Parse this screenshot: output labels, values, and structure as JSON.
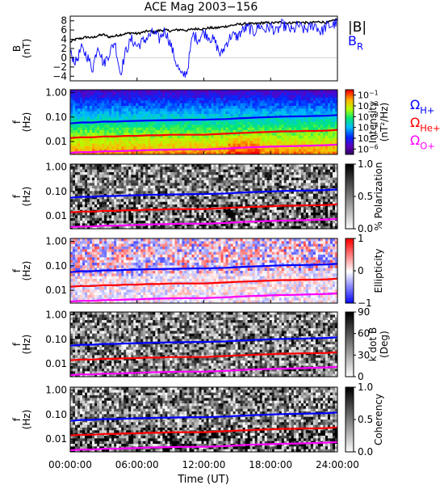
{
  "chart_data": {
    "type": "line",
    "title": "ACE Mag 2003−156",
    "xlabel": "Time (UT)",
    "xlim": [
      0,
      24
    ],
    "x_tick_values": [
      0,
      6,
      12,
      18,
      24
    ],
    "x_tick_labels": [
      "00:00:00",
      "06:00:00",
      "12:00:00",
      "18:00:00",
      "24:00:00"
    ],
    "panels": [
      {
        "id": "field",
        "type": "line",
        "ylabel": [
          "B",
          "(nT)"
        ],
        "ylim": [
          -5,
          9
        ],
        "y_ticks": [
          -4,
          -2,
          0,
          2,
          4,
          6,
          8
        ],
        "legend": [
          {
            "label": "|B|",
            "color": "#000000"
          },
          {
            "label": "B",
            "sub": "R",
            "color": "#0000ff"
          }
        ],
        "series": [
          {
            "name": "|B|",
            "color": "#000000",
            "x": [
              0,
              0.5,
              1,
              1.5,
              2,
              2.5,
              3,
              3.5,
              4,
              4.5,
              5,
              5.5,
              6,
              6.5,
              7,
              7.5,
              8,
              8.5,
              9,
              9.5,
              10,
              10.5,
              11,
              11.5,
              12,
              12.5,
              13,
              13.5,
              14,
              14.5,
              15,
              15.5,
              16,
              16.5,
              17,
              17.5,
              18,
              18.5,
              19,
              19.5,
              20,
              20.5,
              21,
              21.5,
              22,
              22.5,
              23,
              23.5,
              24
            ],
            "values": [
              3.4,
              4.0,
              4.2,
              4.5,
              4.3,
              4.8,
              5.0,
              4.5,
              4.7,
              5.0,
              5.2,
              5.4,
              5.2,
              5.5,
              5.8,
              5.5,
              5.9,
              6.0,
              5.8,
              6.0,
              6.1,
              5.9,
              6.2,
              6.3,
              6.2,
              6.5,
              6.4,
              6.6,
              6.8,
              7.0,
              7.2,
              7.3,
              7.4,
              7.3,
              7.5,
              7.6,
              7.5,
              7.6,
              7.7,
              7.5,
              7.6,
              7.7,
              7.6,
              7.5,
              7.7,
              7.8,
              7.6,
              7.9,
              8.4
            ]
          },
          {
            "name": "B_R",
            "color": "#0000ff",
            "x": [
              0,
              0.5,
              1,
              1.5,
              2,
              2.5,
              3,
              3.5,
              4,
              4.5,
              5,
              5.5,
              6,
              6.5,
              7,
              7.5,
              8,
              8.5,
              9,
              9.5,
              10,
              10.5,
              11,
              11.5,
              12,
              12.5,
              13,
              13.5,
              14,
              14.5,
              15,
              15.5,
              16,
              16.5,
              17,
              17.5,
              18,
              18.5,
              19,
              19.5,
              20,
              20.5,
              21,
              21.5,
              22,
              22.5,
              23,
              23.5,
              24
            ],
            "values": [
              1.0,
              -1.0,
              2.0,
              0.5,
              -2.5,
              3.0,
              -1.5,
              1.0,
              3.5,
              -3.5,
              1.5,
              4.0,
              2.5,
              3.5,
              4.5,
              5.5,
              4.0,
              6.0,
              3.0,
              -1.0,
              -4.0,
              -3.0,
              5.0,
              4.0,
              5.5,
              4.5,
              3.5,
              0.5,
              3.0,
              5.0,
              4.5,
              6.0,
              6.5,
              5.5,
              7.0,
              6.0,
              6.8,
              5.5,
              7.2,
              6.5,
              5.8,
              7.0,
              6.0,
              6.5,
              7.2,
              5.5,
              6.8,
              7.0,
              7.5
            ]
          }
        ]
      },
      {
        "id": "intensity",
        "type": "heatmap",
        "ylabel": [
          "f",
          "(Hz)"
        ],
        "ylim": [
          0.003,
          1.3
        ],
        "y_scale": "log",
        "y_ticks": [
          0.01,
          0.1,
          1.0
        ],
        "y_tick_labels": [
          "0.01",
          "0.10",
          "1.00"
        ],
        "colorbar": {
          "label": [
            "Intensity",
            "(nT²/Hz)"
          ],
          "scheme": "rainbow",
          "range": [
            -6.5,
            -0.5
          ],
          "ticks": [
            {
              "base": "10",
              "exp": "−1",
              "value": -1
            },
            {
              "base": "10",
              "exp": "−2",
              "value": -2
            },
            {
              "base": "10",
              "exp": "−3",
              "value": -3
            },
            {
              "base": "10",
              "exp": "−4",
              "value": -4
            },
            {
              "base": "10",
              "exp": "−5",
              "value": -5
            },
            {
              "base": "10",
              "exp": "−6",
              "value": -6
            }
          ]
        },
        "gyro_legend": [
          {
            "label": "Ω",
            "sub": "H+",
            "color": "#0000ff"
          },
          {
            "label": "Ω",
            "sub": "He+",
            "color": "#ff0000"
          },
          {
            "label": "Ω",
            "sub": "O+",
            "color": "#ff00ff"
          }
        ]
      },
      {
        "id": "polarization",
        "type": "heatmap",
        "ylabel": [
          "f",
          "(Hz)"
        ],
        "ylim": [
          0.003,
          1.3
        ],
        "y_scale": "log",
        "y_ticks": [
          0.01,
          0.1,
          1.0
        ],
        "y_tick_labels": [
          "0.01",
          "0.10",
          "1.00"
        ],
        "colorbar": {
          "label": [
            "% Polarization"
          ],
          "scheme": "gray",
          "range": [
            0,
            1
          ],
          "ticks": [
            {
              "label": "1.0",
              "value": 1.0
            },
            {
              "label": "0.5",
              "value": 0.5
            },
            {
              "label": "0.0",
              "value": 0.0
            }
          ]
        }
      },
      {
        "id": "ellipticity",
        "type": "heatmap",
        "ylabel": [
          "f",
          "(Hz)"
        ],
        "ylim": [
          0.003,
          1.3
        ],
        "y_scale": "log",
        "y_ticks": [
          0.01,
          0.1,
          1.0
        ],
        "y_tick_labels": [
          "0.01",
          "0.10",
          "1.00"
        ],
        "colorbar": {
          "label": [
            "Ellipticity"
          ],
          "scheme": "bwr",
          "range": [
            -1,
            1
          ],
          "ticks": [
            {
              "label": "1",
              "value": 1
            },
            {
              "label": "0",
              "value": 0
            },
            {
              "label": "−1",
              "value": -1
            }
          ]
        }
      },
      {
        "id": "kdotb",
        "type": "heatmap",
        "ylabel": [
          "f",
          "(Hz)"
        ],
        "ylim": [
          0.003,
          1.3
        ],
        "y_scale": "log",
        "y_ticks": [
          0.01,
          0.1,
          1.0
        ],
        "y_tick_labels": [
          "0.01",
          "0.10",
          "1.00"
        ],
        "colorbar": {
          "label": [
            "k dot B",
            "(Deg)"
          ],
          "scheme": "gray",
          "range": [
            0,
            90
          ],
          "ticks": [
            {
              "label": "90",
              "value": 90
            },
            {
              "label": "60",
              "value": 60
            },
            {
              "label": "30",
              "value": 30
            },
            {
              "label": "0",
              "value": 0
            }
          ]
        }
      },
      {
        "id": "coherency",
        "type": "heatmap",
        "ylabel": [
          "f",
          "(Hz)"
        ],
        "ylim": [
          0.003,
          1.3
        ],
        "y_scale": "log",
        "y_ticks": [
          0.01,
          0.1,
          1.0
        ],
        "y_tick_labels": [
          "0.01",
          "0.10",
          "1.00"
        ],
        "colorbar": {
          "label": [
            "Coherency"
          ],
          "scheme": "gray",
          "range": [
            0,
            1
          ],
          "ticks": [
            {
              "label": "1.0",
              "value": 1.0
            },
            {
              "label": "0.5",
              "value": 0.5
            },
            {
              "label": "0.0",
              "value": 0.0
            }
          ]
        }
      }
    ],
    "gyrofrequency_series": [
      {
        "name": "ΩH+",
        "color": "#0000ff",
        "x": [
          0,
          1,
          2,
          3,
          4,
          5,
          6,
          7,
          8,
          9,
          10,
          11,
          12,
          13,
          14,
          15,
          16,
          17,
          18,
          19,
          20,
          21,
          22,
          23,
          24
        ],
        "values": [
          0.055,
          0.06,
          0.06,
          0.065,
          0.065,
          0.068,
          0.07,
          0.072,
          0.074,
          0.075,
          0.076,
          0.078,
          0.078,
          0.08,
          0.083,
          0.088,
          0.092,
          0.096,
          0.1,
          0.104,
          0.106,
          0.108,
          0.11,
          0.114,
          0.12
        ]
      },
      {
        "name": "ΩHe+",
        "color": "#ff0000",
        "x": [
          0,
          1,
          2,
          3,
          4,
          5,
          6,
          7,
          8,
          9,
          10,
          11,
          12,
          13,
          14,
          15,
          16,
          17,
          18,
          19,
          20,
          21,
          22,
          23,
          24
        ],
        "values": [
          0.014,
          0.015,
          0.015,
          0.016,
          0.016,
          0.017,
          0.017,
          0.018,
          0.018,
          0.019,
          0.019,
          0.019,
          0.019,
          0.02,
          0.021,
          0.022,
          0.023,
          0.024,
          0.025,
          0.026,
          0.026,
          0.027,
          0.027,
          0.028,
          0.03
        ]
      },
      {
        "name": "ΩO+",
        "color": "#ff00ff",
        "x": [
          0,
          1,
          2,
          3,
          4,
          5,
          6,
          7,
          8,
          9,
          10,
          11,
          12,
          13,
          14,
          15,
          16,
          17,
          18,
          19,
          20,
          21,
          22,
          23,
          24
        ],
        "values": [
          0.0035,
          0.0037,
          0.0037,
          0.004,
          0.004,
          0.0042,
          0.0043,
          0.0045,
          0.0046,
          0.0047,
          0.0048,
          0.0048,
          0.0048,
          0.005,
          0.0052,
          0.0055,
          0.0058,
          0.006,
          0.0062,
          0.0064,
          0.0065,
          0.0067,
          0.0069,
          0.0071,
          0.0075
        ]
      }
    ]
  }
}
